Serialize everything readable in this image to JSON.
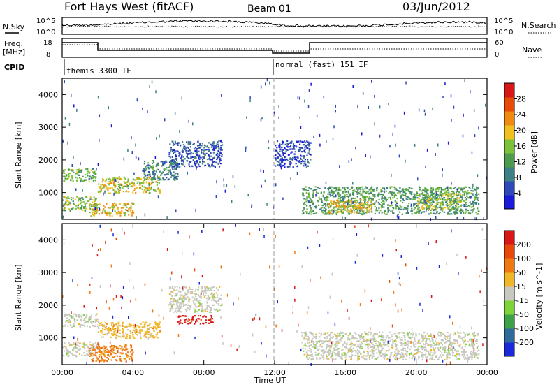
{
  "header": {
    "station": "Fort Hays West (fitACF)",
    "beam": "Beam 01",
    "date": "03/Jun/2012"
  },
  "strip_labels": {
    "nsky": "N.Sky",
    "freq_line1": "Freq.",
    "freq_line2": "[MHz]",
    "cpid": "CPID",
    "nsearch": "N.Search",
    "nave": "Nave"
  },
  "strip_ticks": {
    "nsky_left": [
      "10^5",
      "10^0"
    ],
    "freq_left": [
      "18",
      "8"
    ],
    "right_top": [
      "10^5",
      "10^0"
    ],
    "right_mid": [
      "60",
      "0"
    ]
  },
  "cpid_segments": [
    {
      "label": "themis 3300 IF",
      "start_hour": 0
    },
    {
      "label": "normal (fast) 151 IF",
      "start_hour": 12
    }
  ],
  "chart_data": [
    {
      "type": "heatmap",
      "name": "power",
      "ylabel": "Slant Range [km]",
      "ylim": [
        180,
        4500
      ],
      "y_ticks": [
        1000,
        2000,
        3000,
        4000
      ],
      "colorbar": {
        "label": "Power [dB]",
        "ticks": [
          4,
          8,
          12,
          16,
          20,
          24,
          28
        ],
        "range": [
          0,
          32
        ],
        "colors": [
          "#1a1ad8",
          "#2f49b8",
          "#3f7f86",
          "#4e9a4e",
          "#7cc13a",
          "#f0c020",
          "#f08a10",
          "#e84a08",
          "#d81818"
        ]
      },
      "regions": [
        {
          "t": [
            0.0,
            1.9
          ],
          "r": [
            1350,
            1750
          ],
          "level": 14
        },
        {
          "t": [
            0.0,
            2.0
          ],
          "r": [
            450,
            900
          ],
          "level": 15
        },
        {
          "t": [
            2.0,
            5.5
          ],
          "r": [
            1000,
            1500
          ],
          "level": 18
        },
        {
          "t": [
            1.5,
            4.0
          ],
          "r": [
            300,
            700
          ],
          "level": 20
        },
        {
          "t": [
            6.0,
            9.0
          ],
          "r": [
            1800,
            2600
          ],
          "level": 6
        },
        {
          "t": [
            4.5,
            6.5
          ],
          "r": [
            1400,
            2000
          ],
          "level": 10
        },
        {
          "t": [
            12.0,
            14.0
          ],
          "r": [
            1800,
            2600
          ],
          "level": 5
        },
        {
          "t": [
            13.5,
            23.5
          ],
          "r": [
            350,
            1200
          ],
          "level": 12
        },
        {
          "t": [
            15.0,
            17.5
          ],
          "r": [
            400,
            800
          ],
          "level": 20
        },
        {
          "t": [
            20.0,
            22.5
          ],
          "r": [
            500,
            1000
          ],
          "level": 16
        }
      ]
    },
    {
      "type": "heatmap",
      "name": "velocity",
      "ylabel": "Slant Range [km]",
      "xlabel": "Time UT",
      "ylim": [
        180,
        4500
      ],
      "y_ticks": [
        1000,
        2000,
        3000,
        4000
      ],
      "x_ticks": [
        "00:00",
        "04:00",
        "08:00",
        "12:00",
        "16:00",
        "20:00",
        "00:00"
      ],
      "xlim_hours": [
        0,
        24
      ],
      "colorbar": {
        "label": "Velocity [m s^-1]",
        "ticks": [
          200,
          100,
          50,
          15,
          -15,
          -50,
          -100,
          -200
        ],
        "colors": [
          "#1a2ad8",
          "#2f6a9a",
          "#3fa04a",
          "#7ed23a",
          "#c8c8c0",
          "#f0b828",
          "#f07810",
          "#e84808",
          "#d81818"
        ]
      },
      "regions": [
        {
          "t": [
            0.0,
            2.0
          ],
          "r": [
            1350,
            1750
          ],
          "v": "-15..15"
        },
        {
          "t": [
            0.0,
            2.0
          ],
          "r": [
            450,
            900
          ],
          "v": "-15..15"
        },
        {
          "t": [
            2.0,
            5.5
          ],
          "r": [
            1000,
            1500
          ],
          "v": "-50..-15"
        },
        {
          "t": [
            1.5,
            4.0
          ],
          "r": [
            300,
            800
          ],
          "v": "-100..-50"
        },
        {
          "t": [
            6.0,
            9.0
          ],
          "r": [
            1800,
            2600
          ],
          "v": "-15..15"
        },
        {
          "t": [
            6.5,
            8.5
          ],
          "r": [
            1450,
            1700
          ],
          "v": "-200..-100"
        },
        {
          "t": [
            13.5,
            23.5
          ],
          "r": [
            350,
            1200
          ],
          "v": "-15..15"
        }
      ]
    }
  ]
}
